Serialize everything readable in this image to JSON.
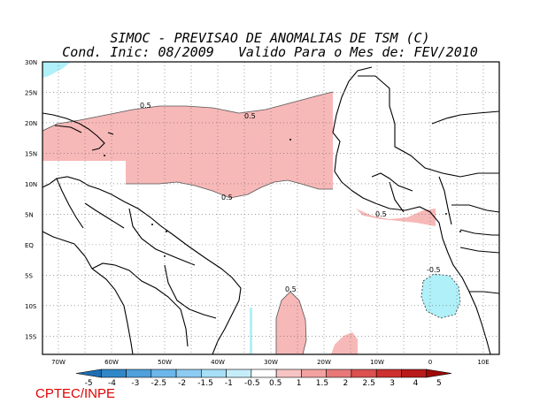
{
  "title": {
    "line1": "SIMOC - PREVISAO DE ANOMALIAS DE TSM (C)",
    "line2": "Cond. Inic: 08/2009   Valido Para o Mes de: FEV/2010"
  },
  "map": {
    "lat_labels": [
      "30N",
      "25N",
      "20N",
      "15N",
      "10N",
      "5N",
      "EQ",
      "5S",
      "10S",
      "15S"
    ],
    "lon_labels": [
      "70W",
      "60W",
      "50W",
      "40W",
      "30W",
      "20W",
      "10W",
      "0",
      "10E"
    ],
    "contour_labels": [
      "0.5",
      "0.5",
      "0.5",
      "0.5",
      "-0.5",
      "0.5"
    ],
    "colors": {
      "positive_anomaly": "#f7b8b8",
      "negative_anomaly": "#b0f0f8"
    }
  },
  "colorbar": {
    "labels": [
      "-5",
      "-4",
      "-3",
      "-2.5",
      "-2",
      "-1.5",
      "-1",
      "-0.5",
      "0.5",
      "1",
      "1.5",
      "2",
      "2.5",
      "3",
      "4",
      "5"
    ],
    "colors": [
      "#1e6eb4",
      "#2f87c8",
      "#4fa0dc",
      "#6cb6ea",
      "#8ccbf2",
      "#a8dff8",
      "#c6eefa",
      "#ffffff",
      "#f7c4c4",
      "#f2a0a0",
      "#e87878",
      "#dc5050",
      "#cc3030",
      "#b81a1a",
      "#a00808"
    ]
  },
  "credit": "CPTEC/INPE"
}
